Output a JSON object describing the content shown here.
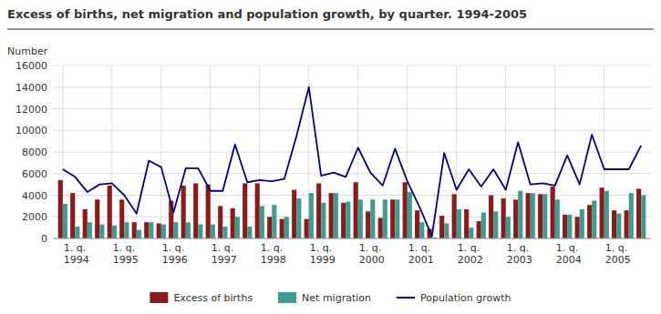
{
  "chart_data": {
    "type": "bar",
    "title": "Excess of births, net migration and population growth, by quarter. 1994-2005",
    "y_label": "Number",
    "categories": [
      "1. q.\n1994",
      null,
      null,
      null,
      "1. q.\n1995",
      null,
      null,
      null,
      "1. q.\n1996",
      null,
      null,
      null,
      "1. q.\n1997",
      null,
      null,
      null,
      "1. q.\n1998",
      null,
      null,
      null,
      "1. q.\n1999",
      null,
      null,
      null,
      "1. q.\n2000",
      null,
      null,
      null,
      "1. q.\n2001",
      null,
      null,
      null,
      "1. q.\n2002",
      null,
      null,
      null,
      "1. q.\n2003",
      null,
      null,
      null,
      "1. q.\n2004",
      null,
      null,
      null,
      "1. q.\n2005",
      null,
      null,
      null
    ],
    "series": [
      {
        "name": "Excess of births",
        "type": "bar",
        "color": "#8B1A1A",
        "values": [
          5400,
          4200,
          2700,
          3600,
          4900,
          3600,
          1500,
          1500,
          1400,
          3500,
          4900,
          5100,
          5000,
          3000,
          2800,
          5100,
          5100,
          2000,
          1800,
          4500,
          1800,
          5100,
          4200,
          3300,
          5200,
          2500,
          1900,
          3600,
          5200,
          2600,
          900,
          2100,
          4100,
          2700,
          1600,
          4000,
          3700,
          3600,
          4200,
          4100,
          4800,
          2200,
          2000,
          3100,
          4700,
          2600,
          2600,
          4600
        ]
      },
      {
        "name": "Net migration",
        "type": "bar",
        "color": "#3D9B8F",
        "values": [
          3200,
          1100,
          1500,
          1300,
          1200,
          1500,
          800,
          1500,
          1300,
          1500,
          1500,
          1300,
          1300,
          1100,
          2000,
          1100,
          3000,
          3100,
          2000,
          3700,
          4200,
          3300,
          4200,
          3400,
          3600,
          3600,
          3600,
          3600,
          4300,
          1500,
          100,
          1400,
          2700,
          1000,
          2400,
          2500,
          2000,
          4400,
          4200,
          4100,
          3600,
          2200,
          2700,
          3500,
          4400,
          2300,
          4200,
          4000
        ]
      },
      {
        "name": "Population growth",
        "type": "line",
        "color": "#00008B",
        "values": [
          6400,
          5700,
          4300,
          5000,
          5100,
          4000,
          2300,
          7200,
          6600,
          2400,
          6500,
          6500,
          4400,
          4400,
          8700,
          5200,
          5400,
          5300,
          5500,
          9500,
          14000,
          5800,
          6100,
          5700,
          8400,
          6100,
          4900,
          8300,
          5300,
          2900,
          200,
          7900,
          4500,
          6400,
          4800,
          6400,
          4500,
          8900,
          5000,
          5100,
          4900,
          7700,
          5000,
          9600,
          6400,
          6400,
          6400,
          8600
        ]
      }
    ],
    "ylim": [
      0,
      16000
    ],
    "yticks": [
      0,
      2000,
      4000,
      6000,
      8000,
      10000,
      12000,
      14000,
      16000
    ],
    "grid": true,
    "legend": "bottom"
  }
}
